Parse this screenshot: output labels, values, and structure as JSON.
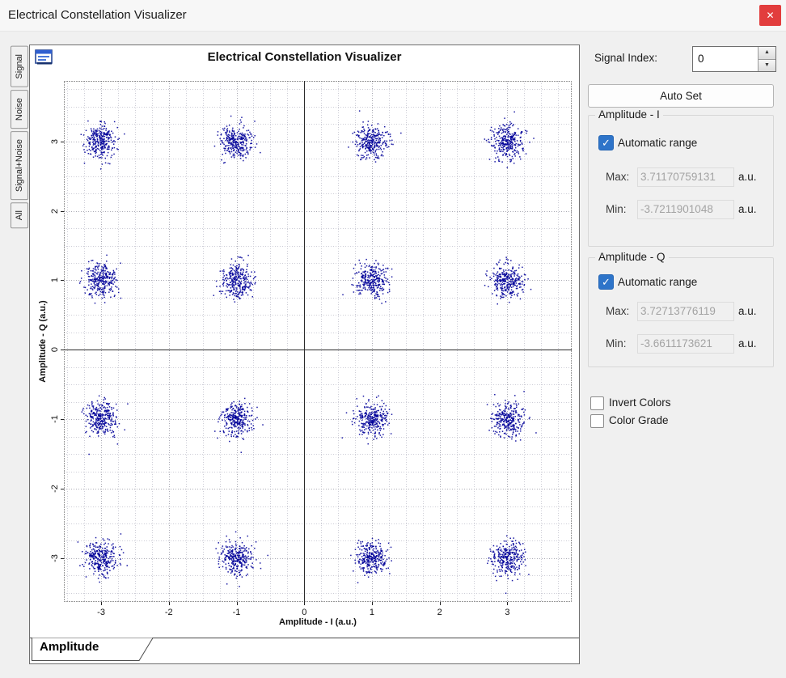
{
  "window": {
    "title": "Electrical Constellation Visualizer"
  },
  "icons": {
    "close": "✕",
    "check": "✓",
    "up_arrow": "▲",
    "down_arrow": "▼"
  },
  "left_tabs": [
    {
      "label": "Signal"
    },
    {
      "label": "Noise"
    },
    {
      "label": "Signal+Noise"
    },
    {
      "label": "All"
    }
  ],
  "bottom_tab": {
    "label": "Amplitude"
  },
  "chart_data": {
    "type": "scatter",
    "title": "Electrical Constellation Visualizer",
    "xlabel": "Amplitude - I (a.u.)",
    "ylabel": "Amplitude - Q (a.u.)",
    "xlim": [
      -3.55,
      3.95
    ],
    "ylim": [
      -3.63,
      3.87
    ],
    "x_ticks": [
      -3,
      -2,
      -1,
      0,
      1,
      2,
      3
    ],
    "y_ticks": [
      -3,
      -2,
      -1,
      0,
      1,
      2,
      3
    ],
    "grid": {
      "on": true,
      "minor_step": 0.25,
      "style": "dotted"
    },
    "point_color": "#000099",
    "clusters": {
      "description": "16-QAM constellation: gaussian clusters at every (I,Q) combination",
      "centers_i": [
        -3,
        -1,
        1,
        3
      ],
      "centers_q": [
        -3,
        -1,
        1,
        3
      ],
      "points_per_cluster": 300,
      "std": 0.12
    }
  },
  "side_panel": {
    "signal_index_label": "Signal Index:",
    "signal_index_value": "0",
    "auto_set_label": "Auto Set",
    "amplitude_i": {
      "group_label": "Amplitude - I",
      "auto_range_label": "Automatic range",
      "auto_range_checked": true,
      "max_label": "Max:",
      "max_value": "3.71170759131",
      "min_label": "Min:",
      "min_value": "-3.7211901048",
      "unit": "a.u."
    },
    "amplitude_q": {
      "group_label": "Amplitude - Q",
      "auto_range_label": "Automatic range",
      "auto_range_checked": true,
      "max_label": "Max:",
      "max_value": "3.72713776119",
      "min_label": "Min:",
      "min_value": "-3.6611173621",
      "unit": "a.u."
    },
    "invert_colors_label": "Invert Colors",
    "invert_colors_checked": false,
    "color_grade_label": "Color Grade",
    "color_grade_checked": false
  }
}
